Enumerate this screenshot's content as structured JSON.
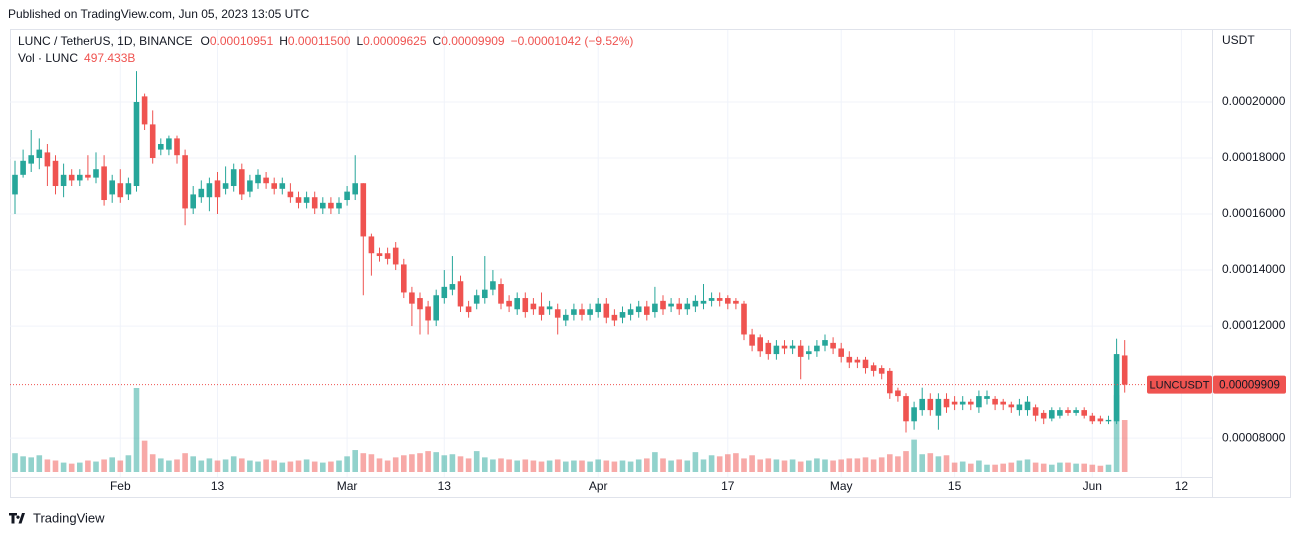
{
  "header": "Published on TradingView.com, Jun 05, 2023 13:05 UTC",
  "footer": "TradingView",
  "chart_data": {
    "type": "candlestick",
    "symbol": "LUNC / TetherUS, 1D, BINANCE",
    "legend": [
      {
        "label": "O",
        "value": "0.00010951"
      },
      {
        "label": "H",
        "value": "0.00011500"
      },
      {
        "label": "L",
        "value": "0.00009625"
      },
      {
        "label": "C",
        "value": "0.00009909"
      }
    ],
    "change": "−0.00001042 (−9.52%)",
    "volume_title": "Vol · LUNC",
    "volume_value": "497.433B",
    "currency": "USDT",
    "last_price_name": "LUNCUSDT",
    "last_price_label": "0.00009909",
    "up_color": "#26a69a",
    "down_color": "#ef5350",
    "grid": true,
    "ylim": [
      6.79e-05,
      0.0002257
    ],
    "yticks": [
      {
        "value": 8e-05,
        "label": "0.00008000"
      },
      {
        "value": 0.00012,
        "label": "0.00012000"
      },
      {
        "value": 0.00014,
        "label": "0.00014000"
      },
      {
        "value": 0.00016,
        "label": "0.00016000"
      },
      {
        "value": 0.00018,
        "label": "0.00018000"
      },
      {
        "value": 0.0002,
        "label": "0.00020000"
      }
    ],
    "categories": [
      null,
      null,
      null,
      null,
      null,
      null,
      null,
      null,
      null,
      null,
      null,
      null,
      null,
      "Feb",
      null,
      null,
      null,
      null,
      null,
      null,
      null,
      null,
      null,
      null,
      null,
      "13",
      null,
      null,
      null,
      null,
      null,
      null,
      null,
      null,
      null,
      null,
      null,
      null,
      null,
      null,
      null,
      "Mar",
      null,
      null,
      null,
      null,
      null,
      null,
      null,
      null,
      null,
      null,
      null,
      "13",
      null,
      null,
      null,
      null,
      null,
      null,
      null,
      null,
      null,
      null,
      null,
      null,
      null,
      null,
      null,
      null,
      null,
      null,
      "Apr",
      null,
      null,
      null,
      null,
      null,
      null,
      null,
      null,
      null,
      null,
      null,
      null,
      null,
      null,
      null,
      "17",
      null,
      null,
      null,
      null,
      null,
      null,
      null,
      null,
      null,
      null,
      null,
      null,
      null,
      "May",
      null,
      null,
      null,
      null,
      null,
      null,
      null,
      null,
      null,
      null,
      null,
      null,
      null,
      "15",
      null,
      null,
      null,
      null,
      null,
      null,
      null,
      null,
      null,
      null,
      null,
      null,
      null,
      null,
      null,
      null,
      "Jun",
      null,
      null,
      null,
      null,
      null,
      null,
      null,
      null,
      null,
      null,
      "12",
      null,
      null
    ],
    "open": [
      0.000167,
      0.000174,
      0.000178,
      0.00018,
      0.000182,
      0.000179,
      0.00017,
      0.000174,
      0.000172,
      0.000174,
      0.000173,
      0.000177,
      0.000167,
      0.000171,
      0.000167,
      0.00017,
      0.000202,
      0.000192,
      0.000183,
      0.000183,
      0.000187,
      0.000181,
      0.000162,
      0.000166,
      0.000166,
      0.000172,
      0.000169,
      0.00017,
      0.000176,
      0.000168,
      0.000171,
      0.000173,
      0.000171,
      0.000169,
      0.000168,
      0.000166,
      0.000164,
      0.000166,
      0.000162,
      0.000164,
      0.000162,
      0.000165,
      0.000167,
      0.000171,
      0.000152,
      0.000146,
      0.000146,
      0.000148,
      0.000142,
      0.000132,
      0.00013,
      0.000127,
      0.000122,
      0.00013,
      0.000133,
      0.000136,
      0.000127,
      0.000128,
      0.00013,
      0.000133,
      0.000135,
      0.000129,
      0.000126,
      0.00013,
      0.000128,
      0.000127,
      0.000126,
      0.000126,
      0.000122,
      0.000124,
      0.000126,
      0.000124,
      0.000125,
      0.000128,
      0.000124,
      0.000123,
      0.000124,
      0.000125,
      0.000127,
      0.000125,
      0.000129,
      0.000127,
      0.000128,
      0.000126,
      0.000127,
      0.000128,
      0.000129,
      0.00013,
      0.00013,
      0.000129,
      0.000128,
      0.000117,
      0.000116,
      0.000114,
      0.00011,
      0.000113,
      0.000112,
      0.000113,
      0.00011,
      0.000111,
      0.000113,
      0.000114,
      0.000112,
      0.000109,
      0.000108,
      0.000108,
      0.000106,
      0.000105,
      0.000104,
      9.7e-05,
      9.5e-05,
      8.6e-05,
      9e-05,
      9.4e-05,
      8.8e-05,
      9.4e-05,
      9.3e-05,
      9.2e-05,
      9.3e-05,
      9.1e-05,
      9.4e-05,
      9.4e-05,
      9.3e-05,
      9.2e-05,
      9e-05,
      9e-05,
      9.1e-05,
      8.9e-05,
      8.7e-05,
      8.8e-05,
      9e-05,
      8.9e-05,
      9e-05,
      8.8e-05,
      8.7e-05,
      8.6e-05,
      8.6e-05,
      0.00010951,
      null,
      null,
      null,
      null,
      null,
      null,
      null,
      null,
      null
    ],
    "high": [
      0.000179,
      0.000183,
      0.00019,
      0.000187,
      0.000185,
      0.000181,
      0.000178,
      0.000176,
      0.000176,
      0.000181,
      0.000182,
      0.000181,
      0.000174,
      0.000176,
      0.000173,
      0.000211,
      0.000203,
      0.000197,
      0.000187,
      0.000188,
      0.000188,
      0.000183,
      0.00017,
      0.000172,
      0.000173,
      0.000175,
      0.000177,
      0.000178,
      0.000178,
      0.000174,
      0.000176,
      0.000175,
      0.000173,
      0.000173,
      0.000171,
      0.000168,
      0.000168,
      0.000168,
      0.000166,
      0.000166,
      0.000166,
      0.00017,
      0.000181,
      0.000171,
      0.000153,
      0.000148,
      0.000148,
      0.00015,
      0.000144,
      0.000134,
      0.000132,
      0.000129,
      0.000133,
      0.00014,
      0.000145,
      0.000138,
      0.000129,
      0.000133,
      0.000145,
      0.00014,
      0.000137,
      0.000131,
      0.000132,
      0.000132,
      0.00013,
      0.000132,
      0.000129,
      0.000128,
      0.000126,
      0.000128,
      0.000128,
      0.000128,
      0.00013,
      0.00013,
      0.000126,
      0.000127,
      0.000128,
      0.000129,
      0.000129,
      0.000134,
      0.000131,
      0.00013,
      0.00013,
      0.00013,
      0.000131,
      0.000135,
      0.000132,
      0.000132,
      0.000131,
      0.00013,
      0.000129,
      0.000119,
      0.000117,
      0.000115,
      0.000115,
      0.000115,
      0.000115,
      0.000115,
      0.000113,
      0.000115,
      0.000117,
      0.000116,
      0.000114,
      0.000111,
      0.000109,
      0.000109,
      0.000107,
      0.000106,
      0.000105,
      9.8e-05,
      9.6e-05,
      9.3e-05,
      9.8e-05,
      9.6e-05,
      9.6e-05,
      9.6e-05,
      9.5e-05,
      9.5e-05,
      9.4e-05,
      9.7e-05,
      9.7e-05,
      9.5e-05,
      9.4e-05,
      9.3e-05,
      9.4e-05,
      9.5e-05,
      9.2e-05,
      9e-05,
      9.1e-05,
      9.1e-05,
      9.1e-05,
      9.1e-05,
      9.1e-05,
      8.9e-05,
      8.8e-05,
      8.8e-05,
      0.0001155,
      0.000115,
      null,
      null,
      null,
      null,
      null,
      null,
      null,
      null,
      null
    ],
    "low": [
      0.00016,
      0.000173,
      0.000175,
      0.000176,
      0.00017,
      0.000167,
      0.000166,
      0.00017,
      0.00017,
      0.000172,
      0.000171,
      0.000163,
      0.000164,
      0.000164,
      0.000165,
      0.000168,
      0.00019,
      0.000178,
      0.000181,
      0.000181,
      0.000178,
      0.000156,
      0.00016,
      0.000164,
      0.000161,
      0.00016,
      0.000167,
      0.000168,
      0.000165,
      0.000166,
      0.000169,
      0.000169,
      0.000167,
      0.000167,
      0.000164,
      0.000162,
      0.000162,
      0.00016,
      0.00016,
      0.00016,
      0.00016,
      0.000163,
      0.000165,
      0.000131,
      0.000138,
      0.000143,
      0.000142,
      0.00014,
      0.00013,
      0.00012,
      0.000117,
      0.000117,
      0.00012,
      0.000128,
      0.000131,
      0.000125,
      0.000123,
      0.000126,
      0.000128,
      0.000131,
      0.000126,
      0.000125,
      0.000124,
      0.000123,
      0.000124,
      0.000122,
      0.000124,
      0.000117,
      0.00012,
      0.000122,
      0.000122,
      0.000122,
      0.000123,
      0.000121,
      0.00012,
      0.000121,
      0.000122,
      0.000123,
      0.000122,
      0.000123,
      0.000124,
      0.000125,
      0.000124,
      0.000124,
      0.000125,
      0.000126,
      0.000127,
      0.000127,
      0.000126,
      0.000126,
      0.000115,
      0.000111,
      0.000109,
      0.000108,
      0.000108,
      0.00011,
      0.00011,
      0.000101,
      0.000108,
      0.000109,
      0.000111,
      0.00011,
      0.000107,
      0.000105,
      0.000105,
      0.000103,
      0.000102,
      0.000101,
      9.4e-05,
      9.3e-05,
      8.2e-05,
      8.3e-05,
      8.8e-05,
      8.8e-05,
      8.3e-05,
      8.9e-05,
      9e-05,
      9e-05,
      9e-05,
      8.9e-05,
      9.2e-05,
      9e-05,
      9e-05,
      8.9e-05,
      8.8e-05,
      8.8e-05,
      8.6e-05,
      8.5e-05,
      8.6e-05,
      8.7e-05,
      8.8e-05,
      8.8e-05,
      8.7e-05,
      8.5e-05,
      8.5e-05,
      8.5e-05,
      8.5e-05,
      9.625e-05,
      null,
      null,
      null,
      null,
      null,
      null,
      null,
      null,
      null
    ],
    "close": [
      0.000174,
      0.000179,
      0.000181,
      0.000183,
      0.000177,
      0.00017,
      0.000174,
      0.000172,
      0.000174,
      0.000173,
      0.000176,
      0.000165,
      0.000172,
      0.000166,
      0.000171,
      0.0002,
      0.000192,
      0.00018,
      0.000185,
      0.000187,
      0.000181,
      0.000162,
      0.000167,
      0.000169,
      0.000171,
      0.000166,
      0.000171,
      0.000176,
      0.000167,
      0.000172,
      0.000174,
      0.000171,
      0.000169,
      0.000171,
      0.000166,
      0.000164,
      0.000166,
      0.000162,
      0.000164,
      0.000162,
      0.000164,
      0.000168,
      0.000171,
      0.000152,
      0.000146,
      0.000145,
      0.000144,
      0.000142,
      0.000132,
      0.000128,
      0.000126,
      0.000122,
      0.000131,
      0.000134,
      0.000135,
      0.000127,
      0.000125,
      0.000131,
      0.000133,
      0.000136,
      0.000128,
      0.000127,
      0.00013,
      0.000125,
      0.000126,
      0.000124,
      0.000127,
      0.000123,
      0.000124,
      0.000126,
      0.000124,
      0.000126,
      0.000128,
      0.000123,
      0.000122,
      0.000125,
      0.000126,
      0.000127,
      0.000124,
      0.000128,
      0.000126,
      0.000128,
      0.000126,
      0.000128,
      0.000129,
      0.000129,
      0.00013,
      0.000129,
      0.000128,
      0.000128,
      0.000117,
      0.000113,
      0.000111,
      0.00011,
      0.000113,
      0.000112,
      0.000113,
      0.000109,
      0.000111,
      0.000113,
      0.000115,
      0.000112,
      0.000109,
      0.000107,
      0.000107,
      0.000105,
      0.000104,
      0.000103,
      9.6e-05,
      9.5e-05,
      8.6e-05,
      9.1e-05,
      9.4e-05,
      9e-05,
      9.4e-05,
      9.1e-05,
      9.2e-05,
      9.3e-05,
      9.2e-05,
      9.5e-05,
      9.5e-05,
      9.2e-05,
      9.2e-05,
      9.1e-05,
      9.2e-05,
      9.3e-05,
      8.8e-05,
      8.7e-05,
      9e-05,
      9e-05,
      8.9e-05,
      9e-05,
      8.8e-05,
      8.6e-05,
      8.6e-05,
      8.65e-05,
      0.00011,
      9.909e-05,
      null,
      null,
      null,
      null,
      null,
      null,
      null,
      null,
      null
    ],
    "volume": [
      180,
      150,
      140,
      160,
      120,
      110,
      90,
      80,
      90,
      110,
      100,
      120,
      140,
      110,
      160,
      804,
      300,
      170,
      130,
      110,
      120,
      180,
      150,
      110,
      130,
      110,
      120,
      150,
      130,
      110,
      100,
      120,
      110,
      90,
      100,
      110,
      120,
      100,
      90,
      100,
      110,
      150,
      210,
      180,
      170,
      130,
      110,
      140,
      160,
      170,
      180,
      200,
      190,
      160,
      170,
      150,
      130,
      200,
      140,
      120,
      130,
      120,
      110,
      120,
      110,
      100,
      110,
      120,
      100,
      110,
      110,
      100,
      120,
      110,
      100,
      110,
      100,
      120,
      130,
      190,
      130,
      110,
      120,
      110,
      190,
      120,
      160,
      150,
      170,
      180,
      130,
      160,
      120,
      130,
      120,
      110,
      120,
      100,
      110,
      130,
      120,
      110,
      120,
      130,
      130,
      140,
      120,
      140,
      170,
      150,
      200,
      310,
      170,
      180,
      150,
      160,
      90,
      100,
      80,
      110,
      70,
      70,
      80,
      90,
      110,
      120,
      90,
      80,
      70,
      90,
      90,
      80,
      80,
      70,
      60,
      70,
      736,
      497.433,
      null,
      null,
      null,
      null,
      null,
      null,
      null,
      null,
      null
    ]
  }
}
